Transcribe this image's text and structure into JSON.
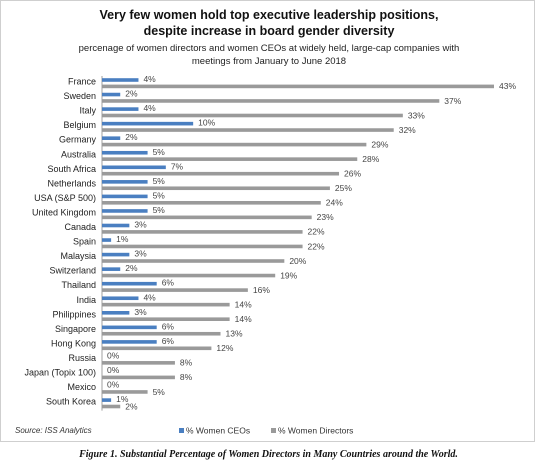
{
  "chart_data": {
    "type": "bar",
    "orientation": "horizontal",
    "title": "Very few women hold top executive leadership positions,",
    "title_line2": "despite increase in board gender diversity",
    "subtitle": "percenage of women directors and women CEOs at widely held, large-cap companies with",
    "subtitle_line2": "meetings from January to June 2018",
    "source": "Source: ISS Analytics",
    "categories": [
      "France",
      "Sweden",
      "Italy",
      "Belgium",
      "Germany",
      "Australia",
      "South Africa",
      "Netherlands",
      "USA (S&P 500)",
      "United Kingdom",
      "Canada",
      "Spain",
      "Malaysia",
      "Switzerland",
      "Thailand",
      "India",
      "Philippines",
      "Singapore",
      "Hong Kong",
      "Russia",
      "Japan (Topix 100)",
      "Mexico",
      "South Korea"
    ],
    "series": [
      {
        "name": "% Women CEOs",
        "color": "#4a7fc1",
        "values": [
          4,
          2,
          4,
          10,
          2,
          5,
          7,
          5,
          5,
          5,
          3,
          1,
          3,
          2,
          6,
          4,
          3,
          6,
          6,
          0,
          0,
          0,
          1
        ]
      },
      {
        "name": "% Women Directors",
        "color": "#9a9a9a",
        "values": [
          43,
          37,
          33,
          32,
          29,
          28,
          26,
          25,
          24,
          23,
          22,
          22,
          20,
          19,
          16,
          14,
          14,
          13,
          12,
          8,
          8,
          5,
          2
        ]
      }
    ],
    "value_suffix": "%",
    "xlim": [
      0,
      43
    ],
    "legend_position": "bottom"
  },
  "caption": "Figure 1. Substantial Percentage of Women Directors in Many Countries around the World."
}
